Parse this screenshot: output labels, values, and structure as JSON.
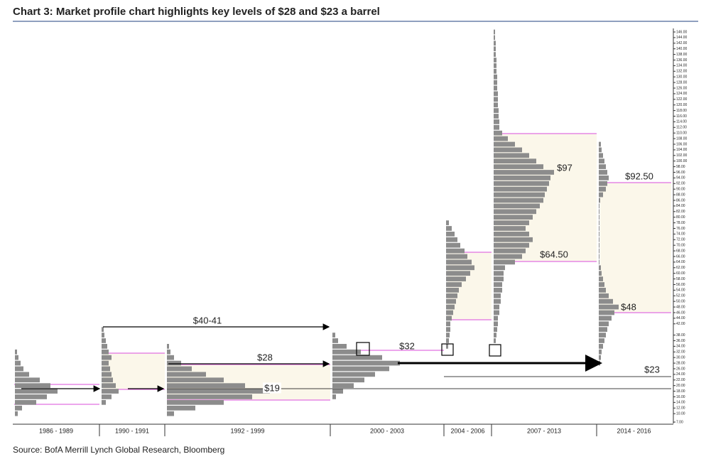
{
  "chart_data": {
    "type": "market-profile",
    "title": "Chart 3: Market profile chart highlights key levels of $28 and $23 a barrel",
    "source": "Source: BofA Merrill Lynch Global Research, Bloomberg",
    "categories": [
      "1986 - 1989",
      "1990 - 1991",
      "1992 - 1999",
      "2000 - 2003",
      "2004 - 2006",
      "2007 - 2013",
      "2014 - 2016"
    ],
    "ylim": [
      7,
      146
    ],
    "yticks": [
      {
        "value": 7,
        "label": "7.00"
      },
      {
        "value": 10,
        "label": "10.00"
      },
      {
        "value": 12,
        "label": "12.00"
      },
      {
        "value": 14,
        "label": "14.00"
      },
      {
        "value": 16,
        "label": "16.00"
      },
      {
        "value": 18,
        "label": "18.00"
      },
      {
        "value": 20,
        "label": "20.00"
      },
      {
        "value": 22,
        "label": "22.00"
      },
      {
        "value": 24,
        "label": "24.00"
      },
      {
        "value": 26,
        "label": "26.00"
      },
      {
        "value": 28,
        "label": "28.00"
      },
      {
        "value": 30,
        "label": "30.00"
      },
      {
        "value": 32,
        "label": "32.00"
      },
      {
        "value": 34,
        "label": "34.00"
      },
      {
        "value": 36,
        "label": "36.00"
      },
      {
        "value": 38,
        "label": "38.00"
      },
      {
        "value": 42,
        "label": "42.00"
      },
      {
        "value": 44,
        "label": "44.00"
      },
      {
        "value": 46,
        "label": "46.00"
      },
      {
        "value": 48,
        "label": "48.00"
      },
      {
        "value": 50,
        "label": "50.00"
      },
      {
        "value": 52,
        "label": "52.00"
      },
      {
        "value": 54,
        "label": "54.00"
      },
      {
        "value": 56,
        "label": "56.00"
      },
      {
        "value": 58,
        "label": "58.00"
      },
      {
        "value": 60,
        "label": "60.00"
      },
      {
        "value": 62,
        "label": "62.00"
      },
      {
        "value": 64,
        "label": "64.00"
      },
      {
        "value": 66,
        "label": "66.00"
      },
      {
        "value": 68,
        "label": "68.00"
      },
      {
        "value": 70,
        "label": "70.00"
      },
      {
        "value": 72,
        "label": "72.00"
      },
      {
        "value": 74,
        "label": "74.00"
      },
      {
        "value": 76,
        "label": "76.00"
      },
      {
        "value": 78,
        "label": "78.00"
      },
      {
        "value": 80,
        "label": "80.00"
      },
      {
        "value": 82,
        "label": "82.00"
      },
      {
        "value": 84,
        "label": "84.00"
      },
      {
        "value": 86,
        "label": "86.00"
      },
      {
        "value": 88,
        "label": "88.00"
      },
      {
        "value": 90,
        "label": "90.00"
      },
      {
        "value": 92,
        "label": "92.00"
      },
      {
        "value": 94,
        "label": "94.00"
      },
      {
        "value": 96,
        "label": "96.00"
      },
      {
        "value": 98,
        "label": "98.00"
      },
      {
        "value": 100,
        "label": "100.00"
      },
      {
        "value": 102,
        "label": "102.00"
      },
      {
        "value": 104,
        "label": "104.00"
      },
      {
        "value": 106,
        "label": "106.00"
      },
      {
        "value": 108,
        "label": "108.00"
      },
      {
        "value": 110,
        "label": "110.00"
      },
      {
        "value": 112,
        "label": "112.00"
      },
      {
        "value": 114,
        "label": "114.00"
      },
      {
        "value": 116,
        "label": "116.00"
      },
      {
        "value": 118,
        "label": "118.00"
      },
      {
        "value": 120,
        "label": "120.00"
      },
      {
        "value": 122,
        "label": "122.00"
      },
      {
        "value": 124,
        "label": "124.00"
      },
      {
        "value": 126,
        "label": "126.00"
      },
      {
        "value": 128,
        "label": "128.00"
      },
      {
        "value": 130,
        "label": "130.00"
      },
      {
        "value": 132,
        "label": "132.00"
      },
      {
        "value": 134,
        "label": "134.00"
      },
      {
        "value": 136,
        "label": "136.00"
      },
      {
        "value": 138,
        "label": "138.00"
      },
      {
        "value": 140,
        "label": "140.00"
      },
      {
        "value": 142,
        "label": "142.00"
      },
      {
        "value": 144,
        "label": "144.00"
      },
      {
        "value": 146,
        "label": "146.00"
      }
    ],
    "color": "#8c8c8c",
    "profiles": [
      {
        "prices": [
          10,
          12,
          14,
          16,
          18,
          20,
          22,
          24,
          26,
          28,
          30,
          32
        ],
        "counts": [
          4,
          10,
          30,
          45,
          60,
          50,
          35,
          20,
          12,
          8,
          5,
          3
        ]
      },
      {
        "prices": [
          14,
          16,
          18,
          20,
          22,
          24,
          26,
          28,
          30,
          32,
          34,
          36,
          38,
          40
        ],
        "counts": [
          6,
          14,
          24,
          20,
          16,
          14,
          12,
          10,
          14,
          10,
          8,
          6,
          4,
          3
        ]
      },
      {
        "prices": [
          10,
          12,
          14,
          16,
          18,
          20,
          22,
          24,
          26,
          28,
          30,
          32,
          34
        ],
        "counts": [
          10,
          40,
          80,
          120,
          145,
          110,
          80,
          55,
          35,
          20,
          10,
          5,
          3
        ]
      },
      {
        "prices": [
          16,
          18,
          20,
          22,
          24,
          26,
          28,
          30,
          32,
          34,
          36,
          38
        ],
        "counts": [
          5,
          15,
          30,
          45,
          60,
          80,
          95,
          70,
          40,
          20,
          8,
          4
        ]
      },
      {
        "prices": [
          34,
          36,
          38,
          40,
          42,
          44,
          46,
          48,
          50,
          52,
          54,
          56,
          58,
          60,
          62,
          64,
          66,
          68,
          70,
          72,
          74,
          76,
          78
        ],
        "counts": [
          3,
          4,
          5,
          6,
          6,
          8,
          10,
          12,
          14,
          16,
          18,
          22,
          28,
          34,
          40,
          36,
          30,
          26,
          20,
          16,
          12,
          8,
          4
        ]
      },
      {
        "prices": [
          36,
          38,
          40,
          42,
          44,
          46,
          48,
          50,
          52,
          54,
          56,
          58,
          60,
          62,
          64,
          66,
          68,
          70,
          72,
          74,
          76,
          78,
          80,
          82,
          84,
          86,
          88,
          90,
          92,
          94,
          96,
          98,
          100,
          102,
          104,
          106,
          108,
          110,
          112,
          114,
          116,
          118,
          120,
          122,
          124,
          126,
          128,
          130,
          132,
          134,
          136,
          138,
          140,
          142,
          144,
          146
        ],
        "counts": [
          3,
          4,
          5,
          6,
          6,
          8,
          8,
          10,
          10,
          12,
          12,
          14,
          14,
          16,
          30,
          40,
          45,
          50,
          55,
          50,
          45,
          50,
          55,
          60,
          65,
          70,
          72,
          75,
          78,
          80,
          85,
          70,
          60,
          50,
          40,
          30,
          20,
          12,
          8,
          8,
          7,
          7,
          6,
          6,
          6,
          5,
          5,
          5,
          4,
          4,
          4,
          3,
          3,
          3,
          2,
          2
        ]
      },
      {
        "prices": [
          28,
          30,
          32,
          34,
          36,
          38,
          40,
          42,
          44,
          46,
          48,
          50,
          52,
          54,
          56,
          58,
          60,
          62,
          64,
          66,
          68,
          70,
          72,
          74,
          76,
          78,
          80,
          82,
          84,
          86,
          88,
          90,
          92,
          94,
          96,
          98,
          100,
          102,
          104,
          106
        ],
        "counts": [
          2,
          3,
          4,
          6,
          8,
          10,
          12,
          14,
          18,
          22,
          28,
          20,
          14,
          10,
          8,
          6,
          4,
          3,
          1,
          1,
          1,
          1,
          1,
          1,
          1,
          1,
          1,
          1,
          1,
          2,
          6,
          10,
          12,
          14,
          12,
          10,
          8,
          6,
          4,
          3
        ]
      }
    ],
    "annotations": [
      "$40-41",
      "$28",
      "$19",
      "$32",
      "$97",
      "$64.50",
      "$92.50",
      "$48",
      "$23"
    ]
  }
}
